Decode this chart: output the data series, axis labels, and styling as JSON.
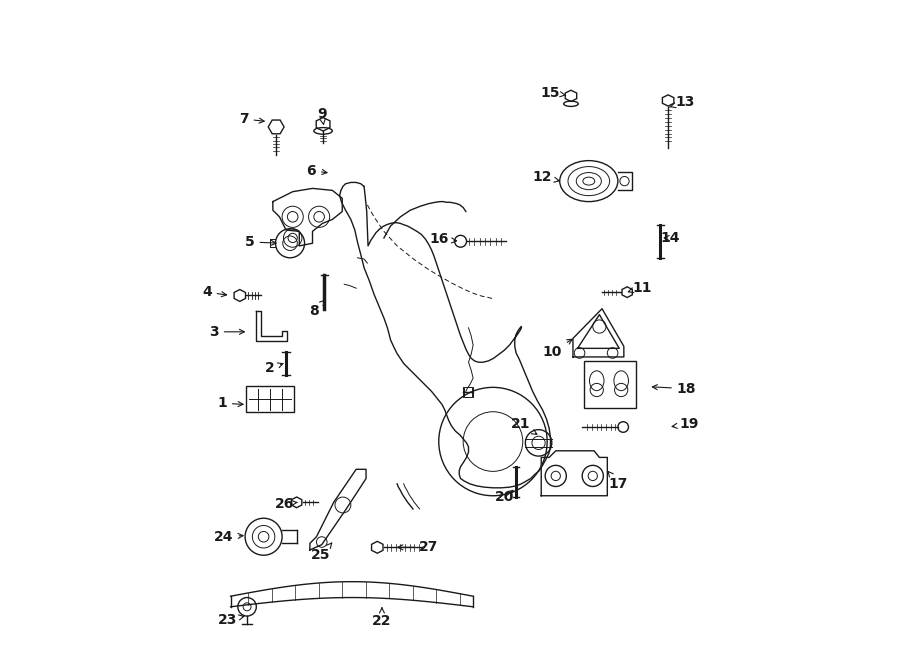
{
  "bg_color": "#ffffff",
  "line_color": "#1a1a1a",
  "fig_width": 9.0,
  "fig_height": 6.61,
  "dpi": 100,
  "label_positions": {
    "1": [
      0.155,
      0.39,
      0.193,
      0.388
    ],
    "2": [
      0.228,
      0.443,
      0.253,
      0.452
    ],
    "3": [
      0.143,
      0.498,
      0.195,
      0.498
    ],
    "4": [
      0.132,
      0.558,
      0.168,
      0.553
    ],
    "5": [
      0.197,
      0.634,
      0.243,
      0.632
    ],
    "6": [
      0.29,
      0.742,
      0.32,
      0.738
    ],
    "7": [
      0.188,
      0.82,
      0.225,
      0.816
    ],
    "8": [
      0.295,
      0.53,
      0.312,
      0.547
    ],
    "9": [
      0.306,
      0.828,
      0.309,
      0.81
    ],
    "10": [
      0.655,
      0.468,
      0.69,
      0.49
    ],
    "11": [
      0.79,
      0.565,
      0.768,
      0.558
    ],
    "12": [
      0.64,
      0.732,
      0.667,
      0.726
    ],
    "13": [
      0.855,
      0.845,
      0.832,
      0.838
    ],
    "14": [
      0.833,
      0.64,
      0.818,
      0.64
    ],
    "15": [
      0.652,
      0.86,
      0.68,
      0.855
    ],
    "16": [
      0.483,
      0.638,
      0.516,
      0.635
    ],
    "17": [
      0.755,
      0.268,
      0.738,
      0.288
    ],
    "18": [
      0.858,
      0.412,
      0.8,
      0.415
    ],
    "19": [
      0.862,
      0.358,
      0.83,
      0.354
    ],
    "20": [
      0.583,
      0.248,
      0.6,
      0.262
    ],
    "21": [
      0.607,
      0.358,
      0.633,
      0.342
    ],
    "22": [
      0.397,
      0.06,
      0.397,
      0.082
    ],
    "23": [
      0.163,
      0.062,
      0.19,
      0.068
    ],
    "24": [
      0.158,
      0.188,
      0.193,
      0.19
    ],
    "25": [
      0.305,
      0.16,
      0.325,
      0.183
    ],
    "26": [
      0.249,
      0.238,
      0.27,
      0.24
    ],
    "27": [
      0.468,
      0.172,
      0.415,
      0.172
    ]
  }
}
